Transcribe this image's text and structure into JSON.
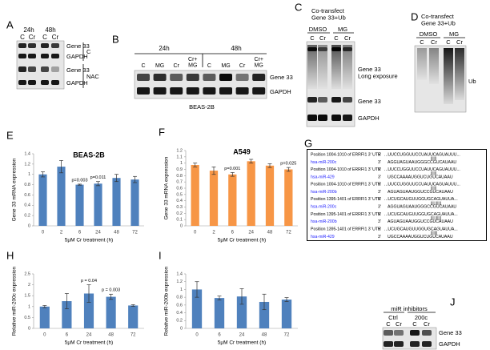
{
  "panels": {
    "A": {
      "label": "A",
      "timepoints": [
        "24h",
        "48h"
      ],
      "lanes": [
        "C",
        "Cr",
        "C",
        "Cr"
      ],
      "bands": [
        "Gene 33",
        "GAPDH",
        "Gene 33",
        "GAPDH"
      ],
      "groups": [
        "C",
        "NAC"
      ]
    },
    "B": {
      "label": "B",
      "timepoints": [
        "24h",
        "48h"
      ],
      "lanes": [
        "C",
        "MG",
        "Cr",
        "Cr+ MG",
        "C",
        "MG",
        "Cr",
        "Cr+ MG"
      ],
      "bands": [
        "Gene 33",
        "GAPDH"
      ],
      "cell_line": "BEAS-2B"
    },
    "C": {
      "label": "C",
      "title": "Co-transfect Gene 33+Ub",
      "treatments": [
        "DMSO",
        "MG"
      ],
      "lanes": [
        "C",
        "Cr",
        "C",
        "Cr"
      ],
      "bands": [
        "Gene 33 Long exposure",
        "Gene 33",
        "GAPDH"
      ]
    },
    "D": {
      "label": "D",
      "title": "Co-transfect Gene 33+Ub",
      "treatments": [
        "DMSO",
        "MG"
      ],
      "lanes": [
        "C",
        "Cr",
        "C",
        "Cr"
      ],
      "bands": [
        "Ub"
      ]
    },
    "G": {
      "label": "G",
      "alignments": [
        {
          "target": "Position 1004-1010 of ERRFI1 3' UTR",
          "target_strand": "5'",
          "target_seq": "...UUCCUGGUUCCUAUUCAGUAUUU...",
          "pairing": "||||||",
          "mirna": "hsa-miR-200c",
          "mirna_strand": "3'",
          "mirna_seq": "AGGUAGUAAUGGGCCGUCAUAAU"
        },
        {
          "target": "Position 1004-1010 of ERRFI1 3' UTR",
          "target_strand": "5'",
          "target_seq": "...UUCCUGGUUCCUAUUCAGUAUUU...",
          "pairing": "||||||",
          "mirna": "hsa-miR-429",
          "mirna_strand": "3'",
          "mirna_seq": "UGCCAAAAUGGUCUGUCAUAAU"
        },
        {
          "target": "Position 1004-1010 of ERRFI1 3' UTR",
          "target_strand": "5'",
          "target_seq": "...UUCCUGGUUCCUAUUCAGUAUUU...",
          "pairing": "||||||",
          "mirna": "hsa-miR-200b",
          "mirna_strand": "3'",
          "mirna_seq": "AGUAGUAAUGGUCCGUCAUAAU"
        },
        {
          "target": "Position 1395-1401 of ERRFI1 3' UTR",
          "target_strand": "5'",
          "target_seq": "...UCUGCAUGUUGGUGCAGUAUUA...",
          "pairing": "|||| ||||||",
          "mirna": "hsa-miR-200c",
          "mirna_strand": "3'",
          "mirna_seq": "AGGUAGUAAUGGGCCGUCAUAAU"
        },
        {
          "target": "Position 1395-1401 of ERRFI1 3' UTR",
          "target_strand": "5'",
          "target_seq": "...UCUGCAUGUUGGUGCAGUAUUA...",
          "pairing": "|||| ||||||",
          "mirna": "hsa-miR-200b",
          "mirna_strand": "3'",
          "mirna_seq": "AGUAGUAAUGGUCCGUCAUAAU"
        },
        {
          "target": "Position 1395-1401 of ERRFI1 3' UTR",
          "target_strand": "5'",
          "target_seq": "...UCUGCAUGUUGGUGCAGUAUUA...",
          "pairing": "|||||||",
          "mirna": "hsa-miR-429",
          "mirna_strand": "3'",
          "mirna_seq": "UGCCAAAAUGGUCUGUCAUAAU"
        }
      ]
    },
    "J": {
      "label": "J",
      "title": "miR inhibitors",
      "treatments": [
        "Ctrl",
        "200c"
      ],
      "lanes": [
        "C",
        "Cr",
        "C",
        "Cr"
      ],
      "bands": [
        "Gene 33",
        "GAPDH"
      ]
    }
  },
  "chart_data": [
    {
      "type": "bar",
      "panel": "E",
      "title": "BEAS-2B",
      "x_label": "5µM Cr treatment (h)",
      "y_label": "Gene 33 mRNA expression",
      "categories": [
        "0",
        "2",
        "6",
        "24",
        "48",
        "72"
      ],
      "values": [
        1.0,
        1.15,
        0.8,
        0.82,
        0.93,
        0.9
      ],
      "errors": [
        0.05,
        0.12,
        0.01,
        0.04,
        0.07,
        0.06
      ],
      "color": "#4f81bd",
      "ylim": [
        0,
        1.4
      ],
      "yticks": [
        0,
        0.2,
        0.4,
        0.6,
        0.8,
        1,
        1.2,
        1.4
      ],
      "annotations": [
        "p=0.003",
        "p=0.011"
      ]
    },
    {
      "type": "bar",
      "panel": "F",
      "title": "A549",
      "x_label": "5µM Cr treatment (h)",
      "y_label": "Gene 33 mRNA expression",
      "categories": [
        "0",
        "2",
        "6",
        "24",
        "48",
        "72"
      ],
      "values": [
        0.97,
        0.88,
        0.82,
        1.03,
        0.96,
        0.9
      ],
      "errors": [
        0.03,
        0.06,
        0.03,
        0.03,
        0.03,
        0.03
      ],
      "color": "#f79646",
      "ylim": [
        0,
        1.2
      ],
      "yticks": [
        0,
        0.1,
        0.2,
        0.3,
        0.4,
        0.5,
        0.6,
        0.7,
        0.8,
        0.9,
        1,
        1.1,
        1.2
      ],
      "annotations": [
        "p=0.001",
        "p=0.025"
      ]
    },
    {
      "type": "bar",
      "panel": "H",
      "x_label": "5µM Cr treatment (h)",
      "y_label": "Relative miR-200c expression",
      "categories": [
        "0",
        "6",
        "24",
        "48",
        "72"
      ],
      "values": [
        1.0,
        1.25,
        1.6,
        1.45,
        1.05
      ],
      "errors": [
        0.05,
        0.35,
        0.4,
        0.12,
        0.04
      ],
      "color": "#4f81bd",
      "ylim": [
        0,
        2.5
      ],
      "yticks": [
        0,
        0.5,
        1,
        1.5,
        2,
        2.5
      ],
      "annotations": [
        "p = 0.04",
        "p = 0.003"
      ]
    },
    {
      "type": "bar",
      "panel": "I",
      "x_label": "5µM Cr treatment (h)",
      "y_label": "Relative miR-200b expression",
      "categories": [
        "0",
        "6",
        "24",
        "48",
        "72"
      ],
      "values": [
        1.0,
        0.78,
        0.82,
        0.68,
        0.74
      ],
      "errors": [
        0.2,
        0.05,
        0.2,
        0.2,
        0.05
      ],
      "color": "#4f81bd",
      "ylim": [
        0,
        1.4
      ],
      "yticks": [
        0,
        0.2,
        0.4,
        0.6,
        0.8,
        1,
        1.2,
        1.4
      ]
    }
  ]
}
